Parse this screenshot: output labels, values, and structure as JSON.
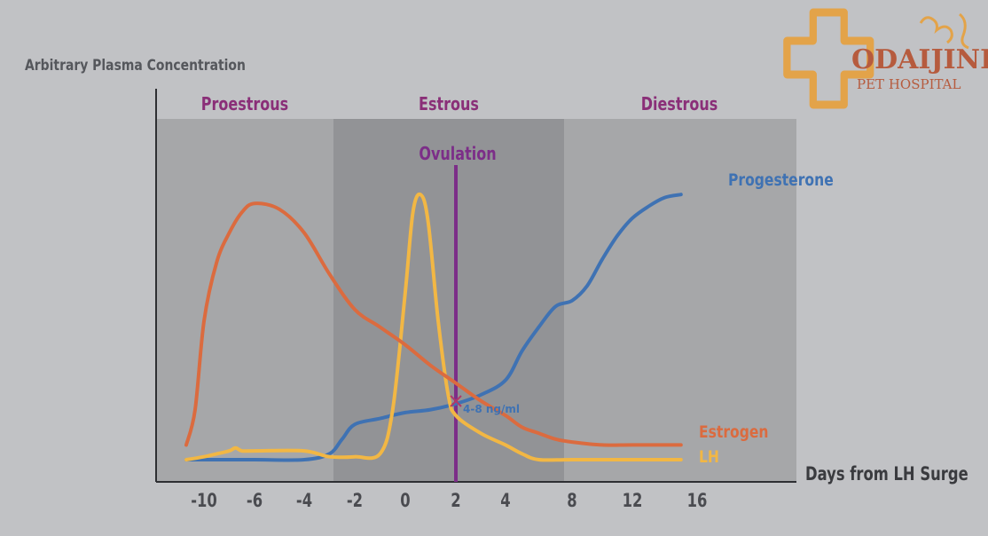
{
  "chart_data": {
    "type": "line",
    "ylabel": "Arbitrary Plasma Concentration",
    "xlabel": "Days from LH Surge",
    "x_ticks": [
      "-10",
      "-6",
      "-4",
      "-2",
      "0",
      "2",
      "4",
      "8",
      "12",
      "16"
    ],
    "phases": [
      "Proestrous",
      "Estrous",
      "Diestrous"
    ],
    "ovulation_label": "Ovulation",
    "annotation": "4-8 ng/ml",
    "grid": false,
    "series": [
      {
        "name": "Progesterone",
        "color": "#3f72b3",
        "points": [
          [
            -11,
            0.03
          ],
          [
            -9,
            0.03
          ],
          [
            -6,
            0.03
          ],
          [
            -4,
            0.03
          ],
          [
            -3,
            0.05
          ],
          [
            -2.5,
            0.1
          ],
          [
            -2,
            0.15
          ],
          [
            -1,
            0.17
          ],
          [
            0,
            0.19
          ],
          [
            1,
            0.2
          ],
          [
            2,
            0.22
          ],
          [
            3,
            0.25
          ],
          [
            4,
            0.3
          ],
          [
            5,
            0.4
          ],
          [
            6,
            0.48
          ],
          [
            7,
            0.55
          ],
          [
            8,
            0.57
          ],
          [
            9,
            0.62
          ],
          [
            10,
            0.71
          ],
          [
            11,
            0.79
          ],
          [
            12,
            0.85
          ],
          [
            13,
            0.89
          ],
          [
            14,
            0.92
          ],
          [
            15,
            0.93
          ]
        ]
      },
      {
        "name": "Estrogen",
        "color": "#db6b3f",
        "points": [
          [
            -11,
            0.08
          ],
          [
            -10.5,
            0.2
          ],
          [
            -10,
            0.5
          ],
          [
            -9,
            0.7
          ],
          [
            -8,
            0.8
          ],
          [
            -7,
            0.87
          ],
          [
            -6,
            0.9
          ],
          [
            -5,
            0.88
          ],
          [
            -4,
            0.8
          ],
          [
            -3,
            0.66
          ],
          [
            -2,
            0.54
          ],
          [
            -1,
            0.48
          ],
          [
            0,
            0.42
          ],
          [
            1,
            0.35
          ],
          [
            2,
            0.29
          ],
          [
            3,
            0.23
          ],
          [
            4,
            0.18
          ],
          [
            5,
            0.14
          ],
          [
            6,
            0.12
          ],
          [
            7,
            0.1
          ],
          [
            8,
            0.09
          ],
          [
            10,
            0.08
          ],
          [
            12,
            0.08
          ],
          [
            15,
            0.08
          ]
        ]
      },
      {
        "name": "LH",
        "color": "#f2b744",
        "points": [
          [
            -11,
            0.03
          ],
          [
            -10,
            0.04
          ],
          [
            -9,
            0.05
          ],
          [
            -8,
            0.06
          ],
          [
            -7.5,
            0.07
          ],
          [
            -7,
            0.06
          ],
          [
            -6,
            0.06
          ],
          [
            -4,
            0.06
          ],
          [
            -3,
            0.04
          ],
          [
            -2,
            0.04
          ],
          [
            -1,
            0.05
          ],
          [
            -0.5,
            0.2
          ],
          [
            0,
            0.6
          ],
          [
            0.3,
            0.87
          ],
          [
            0.6,
            0.93
          ],
          [
            0.9,
            0.84
          ],
          [
            1.3,
            0.5
          ],
          [
            1.7,
            0.25
          ],
          [
            2,
            0.18
          ],
          [
            3,
            0.12
          ],
          [
            4,
            0.08
          ],
          [
            5,
            0.05
          ],
          [
            6,
            0.03
          ],
          [
            8,
            0.03
          ],
          [
            12,
            0.03
          ],
          [
            15,
            0.03
          ]
        ]
      }
    ],
    "ylim": [
      0,
      1
    ]
  },
  "logo": {
    "name_line1": "ODAIJINI",
    "name_line2": "PET HOSPITAL"
  }
}
